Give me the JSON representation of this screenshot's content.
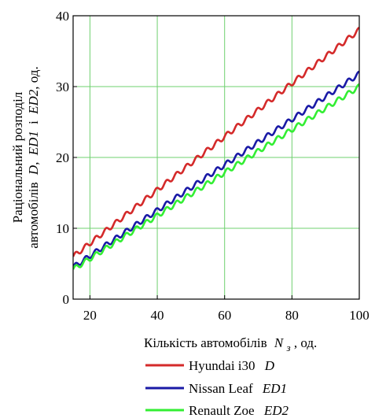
{
  "chart_data": {
    "type": "line",
    "x_axis": {
      "label_text": "Кількість автомобілів",
      "label_symbol": "N",
      "label_subscript": "з",
      "label_unit": ", од.",
      "ticks": [
        20,
        40,
        60,
        80,
        100
      ],
      "range": [
        15,
        100
      ]
    },
    "y_axis": {
      "label_line1": "Раціональний розподіл",
      "label_line2_prefix": "автомобілів",
      "label_line2_D": "D",
      "label_line2_sep1": ",",
      "label_line2_ED1": "ED1",
      "label_line2_mid": "і",
      "label_line2_ED2": "ED2",
      "label_line2_unit": ", од.",
      "ticks": [
        0,
        10,
        20,
        30,
        40
      ],
      "range": [
        0,
        40
      ]
    },
    "grid": true,
    "grid_color": "#6fd06f",
    "legend_position": "bottom",
    "series": [
      {
        "name": "Hyundai i30",
        "symbol": "D",
        "color": "#d42a2a",
        "start_x": 15,
        "end_x": 100,
        "start_y": 6.0,
        "end_y": 38.0,
        "step_period": 3
      },
      {
        "name": "Nissan Leaf",
        "symbol": "ED1",
        "color": "#1a1aa6",
        "start_x": 15,
        "end_x": 100,
        "start_y": 4.5,
        "end_y": 31.8,
        "step_period": 3
      },
      {
        "name": "Renault Zoe",
        "symbol": "ED2",
        "color": "#33ee33",
        "start_x": 15,
        "end_x": 100,
        "start_y": 4.2,
        "end_y": 30.0,
        "step_period": 3
      }
    ]
  }
}
